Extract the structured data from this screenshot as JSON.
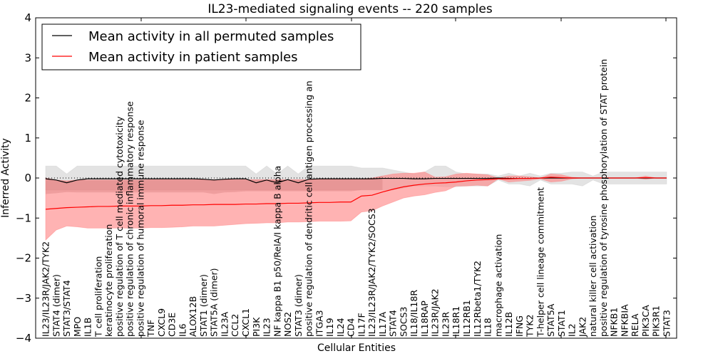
{
  "chart_data": {
    "type": "line",
    "title": "IL23-mediated signaling events -- 220 samples",
    "xlabel": "Cellular Entities",
    "ylabel": "Inferred Activity",
    "ylim": [
      -4,
      4
    ],
    "yticks": [
      4,
      3,
      2,
      1,
      0,
      -1,
      -2,
      -3,
      -4
    ],
    "ytick_labels": [
      "4",
      "3",
      "2",
      "1",
      "0",
      "−1",
      "−2",
      "−3",
      "−4"
    ],
    "grid": false,
    "legend": {
      "placement": "top-left",
      "entries": [
        {
          "label": "Mean activity in all permuted samples",
          "color": "#000000"
        },
        {
          "label": "Mean activity in patient samples",
          "color": "#ff0000"
        }
      ]
    },
    "colors": {
      "permuted_line": "#000000",
      "patient_line": "#ff0000",
      "permuted_band": "#c8c8c8",
      "patient_band": "#ff8080",
      "zero_line": "#000000"
    },
    "categories": [
      "IL23/IL23R/JAK2/TYK2",
      "STAT4 (dimer)",
      "STAT3/STAT4",
      "MPO",
      "IL1B",
      "T cell proliferation",
      "keratinocyte proliferation",
      "positive regulation of T cell mediated cytotoxicity",
      "positive regulation of chronic inflammatory response",
      "positive regulation of humoral immune response",
      "TNF",
      "CXCL9",
      "CD3E",
      "IL6",
      "ALOX12B",
      "STAT1 (dimer)",
      "STAT5A (dimer)",
      "IL23A",
      "CCL2",
      "CXCL1",
      "PI3K",
      "IL23",
      "NF kappa B1 p50/RelA/I kappa B alpha",
      "NOS2",
      "STAT3 (dimer)",
      "positive regulation of dendritic cell antigen processing an",
      "ITGA3",
      "IL19",
      "IL24",
      "CD4",
      "IL17F",
      "IL23/IL23R/JAK2/TYK2/SOCS3",
      "IL17A",
      "STAT4",
      "SOCS3",
      "IL18/IL18R",
      "IL18RAP",
      "IL23R/JAK2",
      "IL23R",
      "IL18R1",
      "IL12RB1",
      "IL12Rbeta1/TYK2",
      "IL18",
      "macrophage activation",
      "IL12B",
      "IFNG",
      "TYK2",
      "T-helper cell lineage commitment",
      "STAT5A",
      "STAT1",
      "IL2",
      "JAK2",
      "natural killer cell activation",
      "positive regulation of tyrosine phosphorylation of STAT protein",
      "NFKB1",
      "NFKBIA",
      "RELA",
      "PIK3CA",
      "PIK3R1",
      "STAT3"
    ],
    "series": [
      {
        "name": "Mean activity in all permuted samples",
        "values": [
          -0.02,
          -0.05,
          -0.12,
          -0.05,
          -0.02,
          -0.02,
          -0.02,
          -0.02,
          -0.02,
          -0.02,
          -0.02,
          -0.02,
          -0.02,
          -0.02,
          -0.02,
          -0.03,
          -0.05,
          -0.03,
          -0.02,
          -0.02,
          -0.12,
          -0.05,
          -0.12,
          -0.04,
          -0.12,
          -0.03,
          -0.02,
          -0.02,
          -0.02,
          -0.02,
          -0.02,
          -0.02,
          -0.01,
          -0.01,
          -0.01,
          -0.02,
          -0.02,
          -0.01,
          -0.01,
          -0.01,
          -0.01,
          -0.01,
          -0.01,
          0.0,
          -0.01,
          -0.01,
          -0.01,
          0.0,
          0.0,
          0.0,
          0.0,
          0.0,
          0.0,
          0.0,
          0.0,
          0.0,
          0.0,
          0.0,
          0.0,
          0.0
        ],
        "band_low": [
          -0.3,
          -0.3,
          -0.3,
          -0.3,
          -0.3,
          -0.3,
          -0.3,
          -0.3,
          -0.3,
          -0.3,
          -0.3,
          -0.3,
          -0.3,
          -0.3,
          -0.3,
          -0.3,
          -0.3,
          -0.3,
          -0.3,
          -0.3,
          -0.3,
          -0.3,
          -0.3,
          -0.3,
          -0.3,
          -0.3,
          -0.3,
          -0.3,
          -0.3,
          -0.3,
          -0.3,
          -0.3,
          -0.3,
          -0.3,
          -0.25,
          -0.2,
          -0.2,
          -0.2,
          -0.22,
          -0.22,
          -0.2,
          -0.2,
          -0.2,
          -0.05,
          -0.15,
          -0.15,
          -0.2,
          -0.05,
          -0.15,
          -0.15,
          -0.15,
          -0.2,
          -0.05,
          -0.15,
          -0.15,
          -0.15,
          -0.15,
          -0.15,
          -0.15,
          -0.15
        ],
        "band_high": [
          0.3,
          0.3,
          0.1,
          0.3,
          0.3,
          0.3,
          0.3,
          0.3,
          0.3,
          0.3,
          0.3,
          0.3,
          0.3,
          0.3,
          0.3,
          0.3,
          0.3,
          0.3,
          0.3,
          0.3,
          0.1,
          0.3,
          0.1,
          0.3,
          0.1,
          0.3,
          0.3,
          0.3,
          0.3,
          0.3,
          0.25,
          0.25,
          0.25,
          0.2,
          0.15,
          0.1,
          0.15,
          0.3,
          0.3,
          0.15,
          0.1,
          0.1,
          0.1,
          0.05,
          0.12,
          0.05,
          0.12,
          0.05,
          0.12,
          0.12,
          0.15,
          0.15,
          0.05,
          0.15,
          0.15,
          0.15,
          0.15,
          0.15,
          0.15,
          0.15
        ]
      },
      {
        "name": "Mean activity in patient samples",
        "values": [
          -0.78,
          -0.76,
          -0.74,
          -0.73,
          -0.72,
          -0.71,
          -0.71,
          -0.7,
          -0.7,
          -0.7,
          -0.69,
          -0.69,
          -0.68,
          -0.68,
          -0.67,
          -0.67,
          -0.66,
          -0.66,
          -0.66,
          -0.65,
          -0.65,
          -0.64,
          -0.64,
          -0.63,
          -0.63,
          -0.62,
          -0.61,
          -0.61,
          -0.6,
          -0.6,
          -0.45,
          -0.43,
          -0.35,
          -0.28,
          -0.22,
          -0.18,
          -0.15,
          -0.13,
          -0.12,
          -0.1,
          -0.07,
          -0.05,
          -0.04,
          -0.02,
          -0.02,
          -0.01,
          -0.01,
          0.0,
          0.02,
          0.01,
          0.0,
          0.0,
          0.0,
          0.0,
          0.0,
          0.0,
          0.0,
          0.01,
          0.0,
          0.0
        ],
        "band_low": [
          -1.55,
          -1.3,
          -1.2,
          -1.22,
          -1.25,
          -1.25,
          -1.25,
          -1.25,
          -1.25,
          -1.25,
          -1.24,
          -1.24,
          -1.23,
          -1.22,
          -1.2,
          -1.2,
          -1.2,
          -1.18,
          -1.16,
          -1.14,
          -1.13,
          -1.12,
          -1.12,
          -1.1,
          -1.1,
          -1.09,
          -1.08,
          -1.08,
          -1.08,
          -1.07,
          -0.85,
          -0.82,
          -0.7,
          -0.6,
          -0.5,
          -0.45,
          -0.42,
          -0.36,
          -0.32,
          -0.2,
          -0.2,
          -0.18,
          -0.2,
          -0.02,
          -0.1,
          -0.08,
          -0.06,
          -0.02,
          -0.1,
          -0.08,
          -0.02,
          0.0,
          0.0,
          0.0,
          0.0,
          0.0,
          0.0,
          -0.03,
          0.0,
          0.0
        ],
        "band_high": [
          0.0,
          -0.05,
          -0.07,
          -0.05,
          -0.05,
          -0.05,
          -0.05,
          -0.05,
          -0.05,
          -0.05,
          -0.04,
          -0.04,
          -0.04,
          -0.04,
          -0.04,
          -0.04,
          -0.04,
          -0.04,
          -0.04,
          -0.04,
          -0.04,
          -0.04,
          -0.04,
          -0.04,
          -0.04,
          -0.04,
          -0.03,
          -0.03,
          -0.03,
          -0.03,
          -0.02,
          0.0,
          0.05,
          0.1,
          0.12,
          0.12,
          0.15,
          0.02,
          0.03,
          0.1,
          0.12,
          0.1,
          0.08,
          0.0,
          0.05,
          0.05,
          0.03,
          0.0,
          0.1,
          0.08,
          0.02,
          0.0,
          0.0,
          0.0,
          0.0,
          0.0,
          0.0,
          0.05,
          0.0,
          0.0
        ]
      }
    ],
    "patient_overlap_low": [
      -0.4,
      -0.38,
      -0.35,
      -0.36,
      -0.36,
      -0.36,
      -0.36,
      -0.36,
      -0.36,
      -0.36,
      -0.36,
      -0.36,
      -0.36,
      -0.36,
      -0.36,
      -0.36,
      -0.4,
      -0.36,
      -0.35,
      -0.33,
      -0.33,
      -0.33,
      -0.33,
      -0.33,
      -0.33,
      -0.33,
      -0.33,
      -0.33,
      -0.33,
      -0.33,
      -0.3,
      -0.3,
      -0.3
    ]
  }
}
